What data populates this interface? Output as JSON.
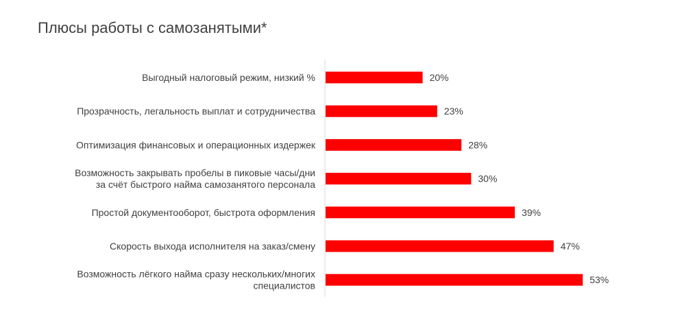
{
  "chart_data": {
    "type": "bar",
    "orientation": "horizontal",
    "title": "Плюсы работы с самозанятыми*",
    "categories": [
      [
        "Выгодный налоговый режим, низкий %"
      ],
      [
        "Прозрачность, легальность выплат и сотрудничества"
      ],
      [
        "Оптимизация финансовых и операционных издержек"
      ],
      [
        "Возможность закрывать пробелы в пиковые часы/дни",
        "за счёт быстрого найма самозанятого персонала"
      ],
      [
        "Простой документооборот, быстрота оформления"
      ],
      [
        "Скорость выхода исполнителя на заказ/смену"
      ],
      [
        "Возможность лёгкого найма сразу нескольких/многих",
        "специалистов"
      ]
    ],
    "values": [
      20,
      23,
      28,
      30,
      39,
      47,
      53
    ],
    "value_labels": [
      "20%",
      "23%",
      "28%",
      "30%",
      "39%",
      "47%",
      "53%"
    ],
    "unit": "%",
    "bar_color": "#ff0000",
    "grid": false,
    "legend": "none"
  }
}
